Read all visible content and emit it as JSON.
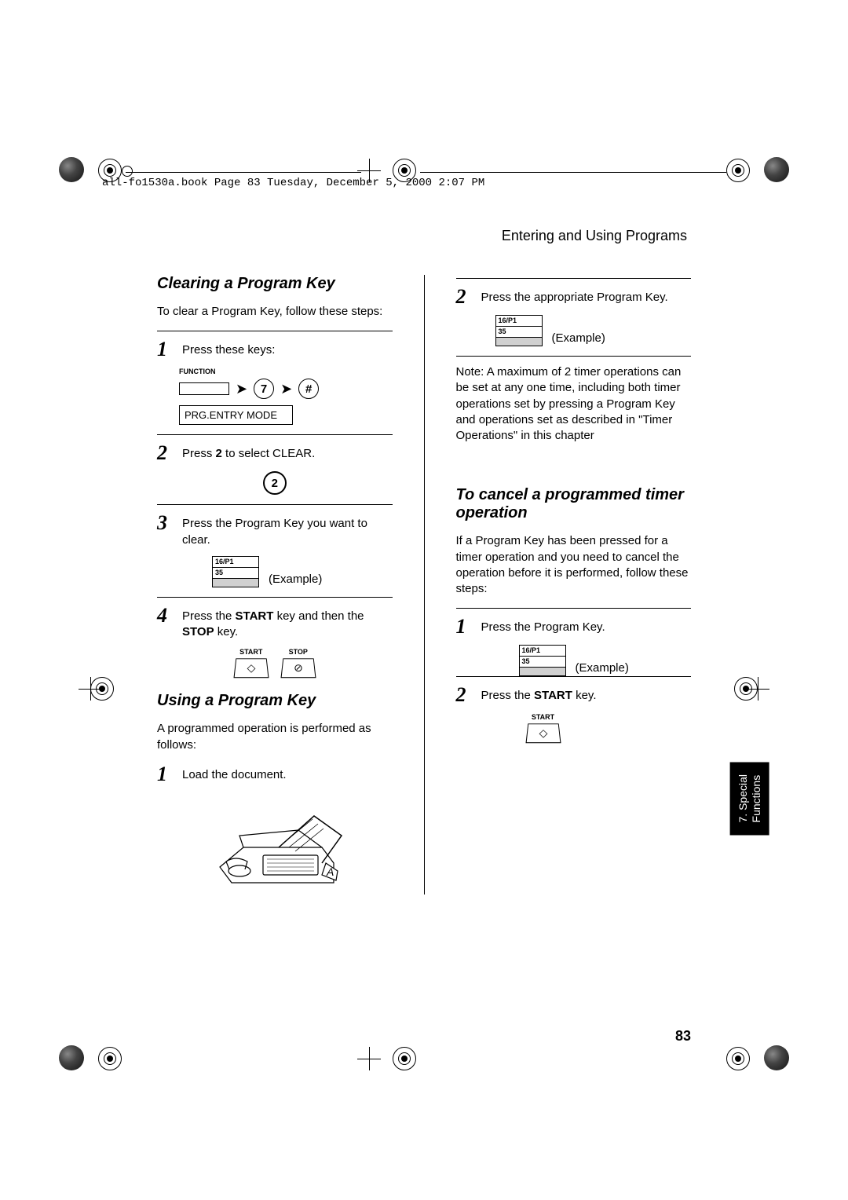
{
  "meta": {
    "crop_header": "all-fo1530a.book  Page 83  Tuesday, December 5, 2000  2:07 PM",
    "section_header": "Entering and Using Programs",
    "page_number": "83",
    "side_tab": "7. Special\nFunctions"
  },
  "left": {
    "h1": "Clearing a Program Key",
    "intro": "To clear a Program Key, follow these steps:",
    "step1": {
      "num": "1",
      "text": "Press these keys:"
    },
    "function_label": "FUNCTION",
    "key_7": "7",
    "key_hash": "#",
    "display_mode": "PRG.ENTRY MODE",
    "step2": {
      "num": "2",
      "text_pre": "Press ",
      "bold": "2",
      "text_post": " to select CLEAR."
    },
    "key_2": "2",
    "step3": {
      "num": "3",
      "text": "Press the Program Key you want to clear."
    },
    "mini_display": {
      "line1": "16/P1",
      "line2": "35"
    },
    "example_label": "(Example)",
    "step4": {
      "num": "4",
      "text_pre": "Press the ",
      "bold1": "START",
      "text_mid": " key and then the ",
      "bold2": "STOP",
      "text_post": " key."
    },
    "start_label": "START",
    "stop_label": "STOP",
    "h2": "Using a Program Key",
    "using_intro": "A programmed operation is performed as follows:",
    "using_step1": {
      "num": "1",
      "text": "Load the document."
    }
  },
  "right": {
    "step2": {
      "num": "2",
      "text": "Press the appropriate Program Key."
    },
    "mini_display": {
      "line1": "16/P1",
      "line2": "35"
    },
    "example_label": "(Example)",
    "note": {
      "bold": "Note:",
      "text": " A maximum of 2 timer operations can be set at any one time, including both timer operations set by pressing a Program Key and operations set as described in \"Timer Operations\" in this chapter"
    },
    "h1": "To cancel a programmed timer operation",
    "intro": "If a Program Key has been pressed for a timer operation and you need to cancel the operation before it is performed, follow these steps:",
    "cancel_step1": {
      "num": "1",
      "text": "Press the Program Key."
    },
    "cancel_step2": {
      "num": "2",
      "text_pre": "Press the ",
      "bold": "START",
      "text_post": " key."
    },
    "start_label": "START"
  },
  "style": {
    "page_bg": "#ffffff",
    "text_color": "#000000",
    "tab_bg": "#000000",
    "tab_fg": "#ffffff",
    "body_fontsize_pt": 11,
    "subhead_fontsize_pt": 15,
    "stepnum_fontsize_pt": 20
  }
}
